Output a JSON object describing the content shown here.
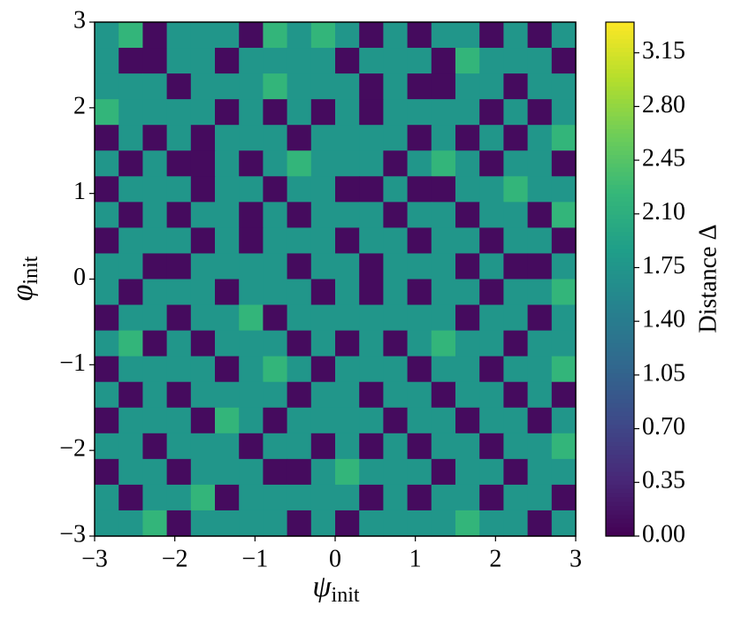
{
  "chart_data": {
    "type": "contour",
    "xlabel": {
      "symbol": "ψ",
      "subscript": "init"
    },
    "ylabel": {
      "symbol": "φ",
      "subscript": "init"
    },
    "colorbar_label": "Distance Δ",
    "colormap": "viridis",
    "xlim": [
      -3,
      3
    ],
    "ylim": [
      -3,
      3
    ],
    "clim": [
      0,
      3.35
    ],
    "xticks": [
      {
        "value": -3,
        "label": "−3"
      },
      {
        "value": -2,
        "label": "−2"
      },
      {
        "value": -1,
        "label": "−1"
      },
      0,
      1,
      2,
      3
    ],
    "yticks": [
      {
        "value": -3,
        "label": "−3"
      },
      {
        "value": -2,
        "label": "−2"
      },
      {
        "value": -1,
        "label": "−1"
      },
      0,
      1,
      2,
      3
    ],
    "cticks": [
      {
        "value": 0,
        "label": "0.00"
      },
      {
        "value": 0.35,
        "label": "0.35"
      },
      {
        "value": 0.7,
        "label": "0.70"
      },
      {
        "value": 1.05,
        "label": "1.05"
      },
      {
        "value": 1.4,
        "label": "1.40"
      },
      {
        "value": 1.75,
        "label": "1.75"
      },
      {
        "value": 2.1,
        "label": "2.10"
      },
      {
        "value": 2.45,
        "label": "2.45"
      },
      {
        "value": 2.8,
        "label": "2.80"
      },
      {
        "value": 3.15,
        "label": "3.15"
      }
    ],
    "x": [
      -2.85,
      -2.55,
      -2.25,
      -1.95,
      -1.65,
      -1.35,
      -1.05,
      -0.75,
      -0.45,
      -0.15,
      0.15,
      0.45,
      0.75,
      1.05,
      1.35,
      1.65,
      1.95,
      2.25,
      2.55,
      2.85
    ],
    "y": [
      2.85,
      2.55,
      2.25,
      1.95,
      1.65,
      1.35,
      1.05,
      0.75,
      0.45,
      0.15,
      -0.15,
      -0.45,
      -0.75,
      -1.05,
      -1.35,
      -1.65,
      -1.95,
      -2.25,
      -2.55,
      -2.85
    ],
    "z": [
      [
        1.75,
        2.2,
        0.1,
        1.75,
        1.75,
        1.75,
        0.1,
        2.2,
        1.75,
        2.2,
        1.75,
        0.1,
        1.75,
        0.1,
        1.75,
        1.75,
        0.1,
        1.75,
        0.1,
        1.75
      ],
      [
        1.75,
        0.1,
        0.1,
        1.75,
        1.75,
        0.1,
        1.75,
        1.75,
        1.75,
        1.75,
        0.1,
        1.75,
        1.75,
        1.75,
        0.1,
        2.2,
        1.75,
        1.75,
        1.75,
        0.1
      ],
      [
        1.75,
        1.75,
        1.75,
        0.1,
        1.75,
        1.75,
        1.75,
        2.2,
        1.75,
        1.75,
        1.75,
        0.1,
        1.75,
        0.1,
        0.1,
        1.75,
        1.75,
        0.1,
        1.75,
        1.75
      ],
      [
        2.2,
        1.75,
        1.75,
        1.75,
        1.75,
        0.1,
        1.75,
        0.1,
        1.75,
        0.1,
        1.75,
        0.1,
        1.75,
        1.75,
        1.75,
        1.75,
        0.1,
        1.75,
        0.1,
        1.75
      ],
      [
        0.1,
        1.75,
        0.1,
        1.75,
        0.1,
        1.75,
        1.75,
        1.75,
        0.1,
        1.75,
        1.75,
        1.75,
        1.75,
        0.1,
        1.75,
        0.1,
        1.75,
        0.1,
        1.75,
        2.2
      ],
      [
        1.75,
        0.1,
        1.75,
        0.1,
        0.1,
        1.75,
        0.1,
        1.75,
        2.2,
        1.75,
        1.75,
        1.75,
        0.1,
        1.75,
        2.2,
        1.75,
        0.1,
        1.75,
        1.75,
        0.1
      ],
      [
        0.1,
        1.75,
        1.75,
        1.75,
        0.1,
        1.75,
        1.75,
        0.1,
        1.75,
        1.75,
        0.1,
        0.1,
        1.75,
        0.1,
        0.1,
        1.75,
        1.75,
        2.2,
        1.75,
        1.75
      ],
      [
        1.75,
        0.1,
        1.75,
        0.1,
        1.75,
        1.75,
        0.1,
        1.75,
        0.1,
        1.75,
        1.75,
        1.75,
        0.1,
        1.75,
        1.75,
        0.1,
        1.75,
        1.75,
        0.1,
        2.2
      ],
      [
        0.1,
        1.75,
        1.75,
        1.75,
        0.1,
        1.75,
        0.1,
        1.75,
        1.75,
        1.75,
        0.1,
        1.75,
        1.75,
        0.1,
        1.75,
        1.75,
        0.1,
        1.75,
        1.75,
        0.1
      ],
      [
        1.75,
        1.75,
        0.1,
        0.1,
        1.75,
        1.75,
        1.75,
        1.75,
        0.1,
        1.75,
        1.75,
        0.1,
        1.75,
        1.75,
        1.75,
        0.1,
        1.75,
        0.1,
        0.1,
        1.75
      ],
      [
        1.75,
        0.1,
        1.75,
        1.75,
        1.75,
        0.1,
        1.75,
        1.75,
        1.75,
        0.1,
        1.75,
        0.1,
        1.75,
        0.1,
        1.75,
        1.75,
        0.1,
        1.75,
        1.75,
        2.2
      ],
      [
        0.1,
        1.75,
        1.75,
        0.1,
        1.75,
        1.75,
        2.2,
        0.1,
        1.75,
        1.75,
        1.75,
        1.75,
        1.75,
        1.75,
        1.75,
        0.1,
        1.75,
        1.75,
        0.1,
        1.75
      ],
      [
        1.75,
        2.2,
        0.1,
        1.75,
        0.1,
        1.75,
        1.75,
        1.75,
        0.1,
        1.75,
        0.1,
        1.75,
        0.1,
        1.75,
        2.2,
        1.75,
        1.75,
        0.1,
        1.75,
        1.75
      ],
      [
        0.1,
        1.75,
        1.75,
        1.75,
        1.75,
        0.1,
        1.75,
        2.2,
        1.75,
        0.1,
        1.75,
        1.75,
        1.75,
        0.1,
        1.75,
        1.75,
        0.1,
        1.75,
        1.75,
        2.2
      ],
      [
        1.75,
        0.1,
        1.75,
        0.1,
        1.75,
        1.75,
        1.75,
        1.75,
        0.1,
        1.75,
        1.75,
        0.1,
        1.75,
        1.75,
        0.1,
        1.75,
        1.75,
        0.1,
        1.75,
        0.1
      ],
      [
        0.1,
        1.75,
        1.75,
        1.75,
        0.1,
        2.2,
        1.75,
        0.1,
        1.75,
        1.75,
        1.75,
        1.75,
        0.1,
        1.75,
        1.75,
        0.1,
        1.75,
        1.75,
        0.1,
        1.75
      ],
      [
        1.75,
        1.75,
        0.1,
        1.75,
        1.75,
        1.75,
        0.1,
        1.75,
        1.75,
        0.1,
        1.75,
        0.1,
        1.75,
        0.1,
        1.75,
        1.75,
        0.1,
        1.75,
        1.75,
        2.2
      ],
      [
        0.1,
        1.75,
        1.75,
        0.1,
        1.75,
        1.75,
        1.75,
        0.1,
        0.1,
        1.75,
        2.2,
        1.75,
        1.75,
        1.75,
        0.1,
        1.75,
        1.75,
        0.1,
        1.75,
        1.75
      ],
      [
        1.75,
        0.1,
        1.75,
        1.75,
        2.2,
        0.1,
        1.75,
        1.75,
        1.75,
        1.75,
        1.75,
        0.1,
        1.75,
        0.1,
        1.75,
        1.75,
        0.1,
        1.75,
        1.75,
        0.1
      ],
      [
        1.75,
        1.75,
        2.2,
        0.1,
        1.75,
        1.75,
        1.75,
        1.75,
        0.1,
        1.75,
        0.1,
        1.75,
        1.75,
        1.75,
        1.75,
        2.2,
        1.75,
        1.75,
        0.1,
        1.75
      ]
    ]
  }
}
